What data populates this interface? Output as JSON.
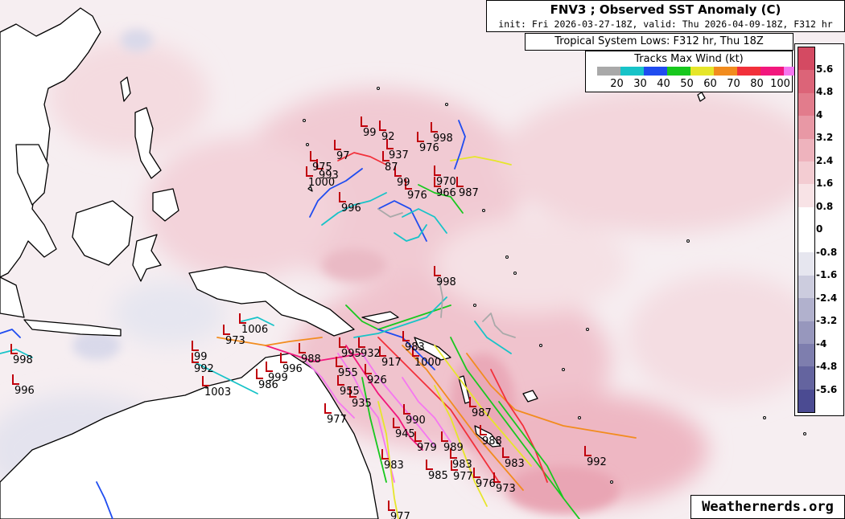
{
  "header": {
    "title": "FNV3 ; Observed SST Anomaly (C)",
    "subtitle": "init: Fri 2026-03-27-18Z, valid: Thu 2026-04-09-18Z, F312 hr"
  },
  "lows_box": {
    "title": "Tropical System Lows: F312 hr, Thu 18Z"
  },
  "tracks_legend": {
    "title": "Tracks Max Wind (kt)",
    "labels": [
      "20",
      "30",
      "40",
      "50",
      "60",
      "70",
      "80",
      "100"
    ],
    "colors": [
      "#a9a9a9",
      "#17c3c8",
      "#1f4cf0",
      "#18c81e",
      "#e6e62a",
      "#f28c1e",
      "#f2303a",
      "#f2177d",
      "#f577f0"
    ]
  },
  "colorbar": {
    "labels": [
      "5.6",
      "4.8",
      "4",
      "3.2",
      "2.4",
      "1.6",
      "0.8",
      "0",
      "-0.8",
      "-1.6",
      "-2.4",
      "-3.2",
      "-4",
      "-4.8",
      "-5.6"
    ],
    "colors": [
      "#d44a62",
      "#dc6478",
      "#e27c8c",
      "#e898a5",
      "#eeb3bd",
      "#f3ccd2",
      "#f8e3e6",
      "#ffffff",
      "#ffffff",
      "#e6e6ef",
      "#ccccde",
      "#b1b1cd",
      "#9797bd",
      "#7e7eae",
      "#64649f",
      "#4b4b92"
    ]
  },
  "credit": "Weathernerds.org",
  "pressure_labels": [
    {
      "text": "998",
      "lon": 542,
      "lat": 172
    },
    {
      "text": "99",
      "lon": 455,
      "lat": 165
    },
    {
      "text": "92",
      "lon": 478,
      "lat": 170
    },
    {
      "text": "976",
      "lon": 525,
      "lat": 184
    },
    {
      "text": "937",
      "lon": 487,
      "lat": 193
    },
    {
      "text": "97",
      "lon": 422,
      "lat": 194
    },
    {
      "text": "87",
      "lon": 482,
      "lat": 208
    },
    {
      "text": "975",
      "lon": 392,
      "lat": 208
    },
    {
      "text": "993",
      "lon": 400,
      "lat": 218
    },
    {
      "text": "1000",
      "lon": 387,
      "lat": 227
    },
    {
      "text": "99",
      "lon": 497,
      "lat": 227
    },
    {
      "text": "970",
      "lon": 546,
      "lat": 226
    },
    {
      "text": "976",
      "lon": 510,
      "lat": 243
    },
    {
      "text": "966",
      "lon": 546,
      "lat": 240
    },
    {
      "text": "987",
      "lon": 574,
      "lat": 240
    },
    {
      "text": "996",
      "lon": 428,
      "lat": 259
    },
    {
      "text": "998",
      "lon": 546,
      "lat": 351
    },
    {
      "text": "1006",
      "lon": 304,
      "lat": 410
    },
    {
      "text": "973",
      "lon": 284,
      "lat": 424
    },
    {
      "text": "995",
      "lon": 428,
      "lat": 440
    },
    {
      "text": "932",
      "lon": 452,
      "lat": 440
    },
    {
      "text": "983",
      "lon": 507,
      "lat": 432
    },
    {
      "text": "988",
      "lon": 378,
      "lat": 447
    },
    {
      "text": "998",
      "lon": 20,
      "lat": 448
    },
    {
      "text": "99",
      "lon": 245,
      "lat": 444
    },
    {
      "text": "1000",
      "lon": 519,
      "lat": 451
    },
    {
      "text": "917",
      "lon": 478,
      "lat": 451
    },
    {
      "text": "992",
      "lon": 245,
      "lat": 459
    },
    {
      "text": "996",
      "lon": 355,
      "lat": 459
    },
    {
      "text": "955",
      "lon": 424,
      "lat": 464
    },
    {
      "text": "926",
      "lon": 460,
      "lat": 473
    },
    {
      "text": "999",
      "lon": 337,
      "lat": 470
    },
    {
      "text": "986",
      "lon": 325,
      "lat": 479
    },
    {
      "text": "1003",
      "lon": 258,
      "lat": 488
    },
    {
      "text": "996",
      "lon": 22,
      "lat": 486
    },
    {
      "text": "955",
      "lon": 426,
      "lat": 487
    },
    {
      "text": "935",
      "lon": 441,
      "lat": 502
    },
    {
      "text": "987",
      "lon": 590,
      "lat": 514
    },
    {
      "text": "977",
      "lon": 410,
      "lat": 522
    },
    {
      "text": "990",
      "lon": 508,
      "lat": 523
    },
    {
      "text": "945",
      "lon": 495,
      "lat": 540
    },
    {
      "text": "988",
      "lon": 603,
      "lat": 549
    },
    {
      "text": "979",
      "lon": 522,
      "lat": 557
    },
    {
      "text": "989",
      "lon": 555,
      "lat": 557
    },
    {
      "text": "992",
      "lon": 733,
      "lat": 575
    },
    {
      "text": "983",
      "lon": 481,
      "lat": 579
    },
    {
      "text": "983",
      "lon": 566,
      "lat": 578
    },
    {
      "text": "983",
      "lon": 631,
      "lat": 577
    },
    {
      "text": "985",
      "lon": 536,
      "lat": 592
    },
    {
      "text": "977",
      "lon": 567,
      "lat": 593
    },
    {
      "text": "976",
      "lon": 595,
      "lat": 602
    },
    {
      "text": "973",
      "lon": 620,
      "lat": 608
    },
    {
      "text": "977",
      "lon": 489,
      "lat": 643
    }
  ]
}
